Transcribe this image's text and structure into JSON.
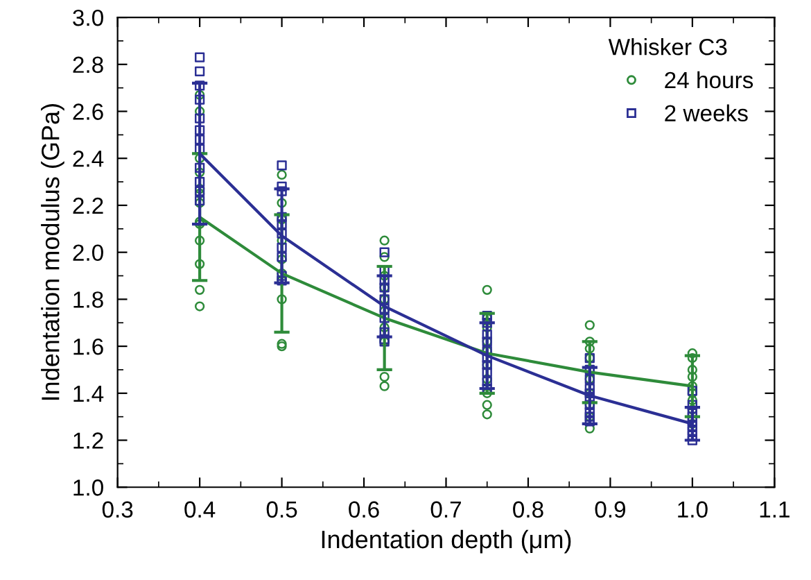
{
  "chart_data": {
    "type": "scatter",
    "xlabel": "Indentation depth (μm)",
    "ylabel": "Indentation modulus (GPa)",
    "legend_title": "Whisker C3",
    "legend": "top right",
    "grid": false,
    "xlim": [
      0.3,
      1.1
    ],
    "xticks": [
      {
        "value": 0.3,
        "label": "0.3"
      },
      {
        "value": 0.4,
        "label": "0.4"
      },
      {
        "value": 0.5,
        "label": "0.5"
      },
      {
        "value": 0.6,
        "label": "0.6"
      },
      {
        "value": 0.7,
        "label": "0.7"
      },
      {
        "value": 0.8,
        "label": "0.8"
      },
      {
        "value": 0.9,
        "label": "0.9"
      },
      {
        "value": 1.0,
        "label": "1.0"
      },
      {
        "value": 1.1,
        "label": "1.1"
      }
    ],
    "ylim": [
      1.0,
      3.0
    ],
    "yticks": [
      {
        "value": 1.0,
        "label": "1.0"
      },
      {
        "value": 1.2,
        "label": "1.2"
      },
      {
        "value": 1.4,
        "label": "1.4"
      },
      {
        "value": 1.6,
        "label": "1.6"
      },
      {
        "value": 1.8,
        "label": "1.8"
      },
      {
        "value": 2.0,
        "label": "2.0"
      },
      {
        "value": 2.2,
        "label": "2.2"
      },
      {
        "value": 2.4,
        "label": "2.4"
      },
      {
        "value": 2.6,
        "label": "2.6"
      },
      {
        "value": 2.8,
        "label": "2.8"
      },
      {
        "value": 3.0,
        "label": "3.0"
      }
    ],
    "series": [
      {
        "type": "line",
        "color": "#2e8b3a",
        "marker": "none",
        "line_style": "solid",
        "x": [
          0.4,
          0.5,
          0.625,
          0.75,
          0.875,
          1.0
        ],
        "values": [
          2.15,
          1.91,
          1.72,
          1.57,
          1.49,
          1.43
        ],
        "errors": [
          0.27,
          0.25,
          0.22,
          0.17,
          0.13,
          0.13
        ]
      },
      {
        "type": "line",
        "color": "#2b2f94",
        "marker": "none",
        "line_style": "solid",
        "x": [
          0.4,
          0.5,
          0.625,
          0.75,
          0.875,
          1.0
        ],
        "values": [
          2.42,
          2.07,
          1.77,
          1.56,
          1.39,
          1.27
        ],
        "errors": [
          0.3,
          0.2,
          0.13,
          0.14,
          0.12,
          0.07
        ]
      },
      {
        "name": "24 hours",
        "color": "#2e8b3a",
        "marker": "circle",
        "x": [
          0.4,
          0.4,
          0.4,
          0.4,
          0.4,
          0.4,
          0.4,
          0.4,
          0.4,
          0.4,
          0.4,
          0.4,
          0.4,
          0.5,
          0.5,
          0.5,
          0.5,
          0.5,
          0.5,
          0.5,
          0.5,
          0.5,
          0.5,
          0.625,
          0.625,
          0.625,
          0.625,
          0.625,
          0.625,
          0.625,
          0.625,
          0.625,
          0.625,
          0.75,
          0.75,
          0.75,
          0.75,
          0.75,
          0.75,
          0.75,
          0.75,
          0.75,
          0.75,
          0.875,
          0.875,
          0.875,
          0.875,
          0.875,
          0.875,
          0.875,
          0.875,
          0.875,
          0.875,
          1.0,
          1.0,
          1.0,
          1.0,
          1.0,
          1.0,
          1.0,
          1.0,
          1.0
        ],
        "values": [
          2.67,
          2.6,
          2.4,
          2.34,
          2.27,
          2.25,
          2.21,
          2.13,
          2.12,
          2.05,
          1.95,
          1.84,
          1.77,
          2.33,
          2.21,
          2.14,
          2.05,
          1.97,
          1.91,
          1.88,
          1.8,
          1.61,
          1.6,
          2.05,
          1.98,
          1.9,
          1.85,
          1.8,
          1.75,
          1.68,
          1.62,
          1.47,
          1.43,
          1.84,
          1.72,
          1.68,
          1.62,
          1.58,
          1.52,
          1.46,
          1.4,
          1.35,
          1.31,
          1.69,
          1.62,
          1.59,
          1.55,
          1.5,
          1.46,
          1.4,
          1.35,
          1.3,
          1.25,
          1.57,
          1.55,
          1.5,
          1.47,
          1.43,
          1.4,
          1.37,
          1.33,
          1.27
        ]
      },
      {
        "name": "2 weeks",
        "color": "#2b2f94",
        "marker": "square",
        "x": [
          0.4,
          0.4,
          0.4,
          0.4,
          0.4,
          0.4,
          0.4,
          0.4,
          0.4,
          0.4,
          0.4,
          0.4,
          0.5,
          0.5,
          0.5,
          0.5,
          0.5,
          0.5,
          0.5,
          0.5,
          0.5,
          0.5,
          0.625,
          0.625,
          0.625,
          0.625,
          0.625,
          0.625,
          0.625,
          0.625,
          0.625,
          0.625,
          0.75,
          0.75,
          0.75,
          0.75,
          0.75,
          0.75,
          0.75,
          0.75,
          0.75,
          0.75,
          0.875,
          0.875,
          0.875,
          0.875,
          0.875,
          0.875,
          0.875,
          0.875,
          0.875,
          0.875,
          1.0,
          1.0,
          1.0,
          1.0,
          1.0,
          1.0,
          1.0,
          1.0,
          1.0
        ],
        "values": [
          2.83,
          2.77,
          2.71,
          2.65,
          2.57,
          2.52,
          2.48,
          2.44,
          2.36,
          2.3,
          2.26,
          2.22,
          2.37,
          2.28,
          2.26,
          2.15,
          2.12,
          2.08,
          2.02,
          1.98,
          1.9,
          1.88,
          2.0,
          1.92,
          1.88,
          1.85,
          1.8,
          1.76,
          1.72,
          1.66,
          1.63,
          1.62,
          1.73,
          1.7,
          1.65,
          1.62,
          1.58,
          1.55,
          1.52,
          1.49,
          1.45,
          1.42,
          1.55,
          1.5,
          1.46,
          1.42,
          1.4,
          1.38,
          1.35,
          1.32,
          1.3,
          1.28,
          1.41,
          1.35,
          1.32,
          1.3,
          1.28,
          1.26,
          1.24,
          1.22,
          1.2
        ]
      }
    ]
  }
}
